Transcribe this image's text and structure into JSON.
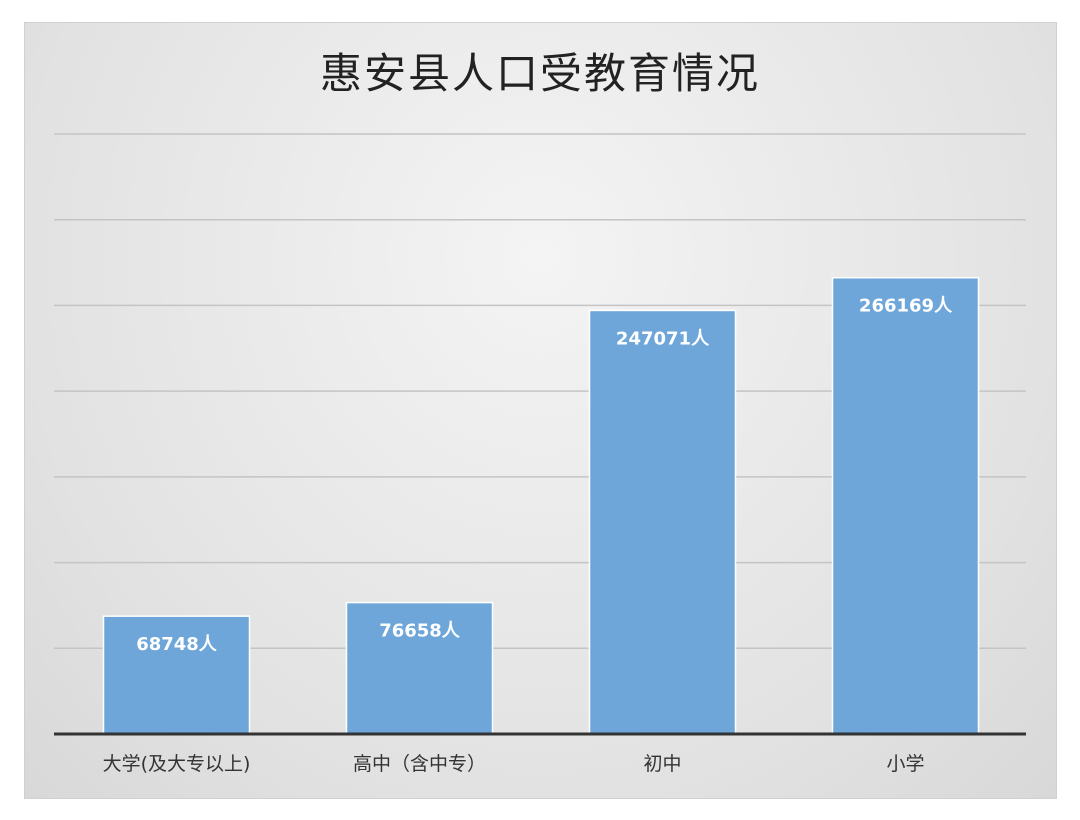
{
  "chart_data": {
    "type": "bar",
    "title": "惠安县人口受教育情况",
    "categories": [
      "大学(及大专以上)",
      "高中（含中专）",
      "初中",
      "小学"
    ],
    "values": [
      68748,
      76658,
      247071,
      266169
    ],
    "value_labels": [
      "68748人",
      "76658人",
      "247071人",
      "266169人"
    ],
    "ylim": [
      0,
      350000
    ],
    "grid": true,
    "bar_color": "#6ea6d9"
  }
}
